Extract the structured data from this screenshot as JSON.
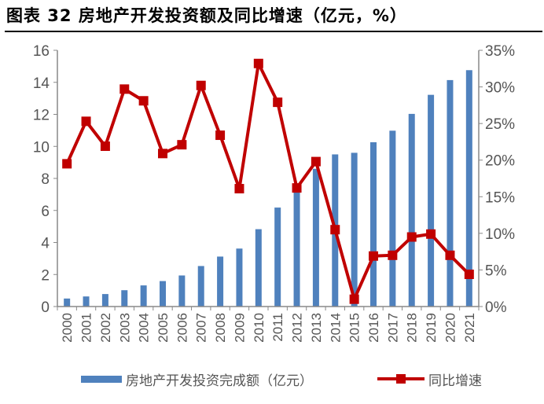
{
  "title": "图表 32  房地产开发投资额及同比增速（亿元，%）",
  "chart_data": {
    "type": "bar+line",
    "title": "图表 32  房地产开发投资额及同比增速（亿元，%）",
    "categories": [
      "2000",
      "2001",
      "2002",
      "2003",
      "2004",
      "2005",
      "2006",
      "2007",
      "2008",
      "2009",
      "2010",
      "2011",
      "2012",
      "2013",
      "2014",
      "2015",
      "2016",
      "2017",
      "2018",
      "2019",
      "2020",
      "2021"
    ],
    "series": [
      {
        "name": "房地产开发投资完成额（亿元）",
        "type": "bar",
        "axis": "left",
        "color": "#4F81BD",
        "values": [
          0.5,
          0.63,
          0.78,
          1.02,
          1.32,
          1.59,
          1.94,
          2.53,
          3.12,
          3.62,
          4.83,
          6.18,
          7.18,
          8.6,
          9.5,
          9.6,
          10.26,
          10.98,
          12.03,
          13.22,
          14.14,
          14.76
        ]
      },
      {
        "name": "同比增速",
        "type": "line",
        "axis": "right",
        "color": "#C00000",
        "values": [
          19.5,
          25.3,
          21.9,
          29.7,
          28.1,
          20.9,
          22.1,
          30.2,
          23.4,
          16.1,
          33.2,
          27.9,
          16.2,
          19.8,
          10.5,
          1.0,
          6.9,
          7.0,
          9.5,
          9.9,
          7.0,
          4.4
        ]
      }
    ],
    "ylim": [
      0,
      16
    ],
    "yticks": [
      0,
      2,
      4,
      6,
      8,
      10,
      12,
      14,
      16
    ],
    "y2lim": [
      0,
      35
    ],
    "y2ticks": [
      "0%",
      "5%",
      "10%",
      "15%",
      "20%",
      "25%",
      "30%",
      "35%"
    ],
    "grid": false,
    "legend": "bottom"
  }
}
